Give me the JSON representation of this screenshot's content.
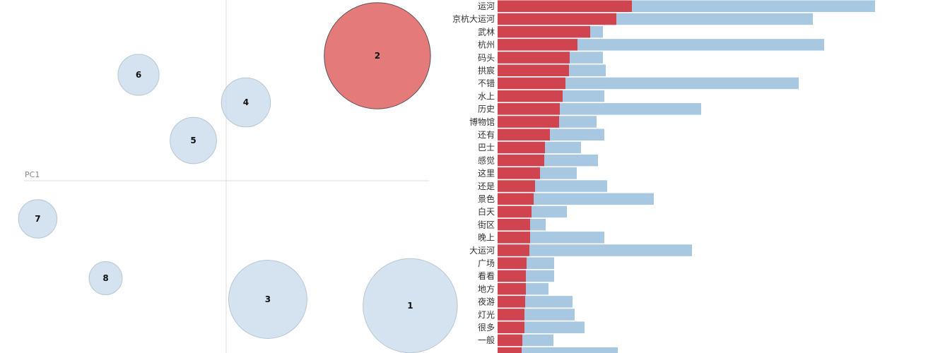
{
  "chart_data": [
    {
      "type": "scatter",
      "axis_label": "PC1",
      "topics": [
        {
          "id": "1",
          "x": 0.84,
          "y": -0.59,
          "size": 7.1,
          "selected": false
        },
        {
          "id": "2",
          "x": 0.69,
          "y": 0.59,
          "size": 8.0,
          "selected": true
        },
        {
          "id": "3",
          "x": 0.19,
          "y": -0.56,
          "size": 5.9,
          "selected": false
        },
        {
          "id": "4",
          "x": 0.09,
          "y": 0.37,
          "size": 3.7,
          "selected": false
        },
        {
          "id": "5",
          "x": -0.15,
          "y": 0.19,
          "size": 3.5,
          "selected": false
        },
        {
          "id": "6",
          "x": -0.4,
          "y": 0.5,
          "size": 3.1,
          "selected": false
        },
        {
          "id": "7",
          "x": -0.86,
          "y": -0.18,
          "size": 2.9,
          "selected": false
        },
        {
          "id": "8",
          "x": -0.55,
          "y": -0.46,
          "size": 2.5,
          "selected": false
        }
      ],
      "colors": {
        "selected": "#e57a7a",
        "default": "#c5d9ea"
      }
    },
    {
      "type": "bar",
      "orientation": "horizontal",
      "categories": [
        "运河",
        "京杭大运河",
        "武林",
        "杭州",
        "码头",
        "拱宸",
        "不错",
        "水上",
        "历史",
        "博物馆",
        "还有",
        "巴士",
        "感觉",
        "这里",
        "还是",
        "景色",
        "白天",
        "街区",
        "晚上",
        "大运河",
        "广场",
        "看看",
        "地方",
        "夜游",
        "灯光",
        "很多",
        "一般"
      ],
      "series": [
        {
          "role": "topic-frequency",
          "values": [
            190,
            168,
            131,
            113,
            102,
            101,
            96,
            92,
            88,
            87,
            74,
            67,
            66,
            60,
            53,
            51,
            48,
            46,
            46,
            45,
            41,
            40,
            40,
            39,
            38,
            38,
            35
          ]
        },
        {
          "role": "overall-frequency",
          "values": [
            534,
            446,
            149,
            462,
            149,
            153,
            426,
            151,
            288,
            140,
            151,
            118,
            142,
            112,
            155,
            221,
            98,
            68,
            151,
            275,
            80,
            80,
            72,
            106,
            109,
            123,
            79
          ]
        }
      ],
      "colors": {
        "topic": "#d0444f",
        "overall": "#a7c8e0"
      }
    }
  ]
}
